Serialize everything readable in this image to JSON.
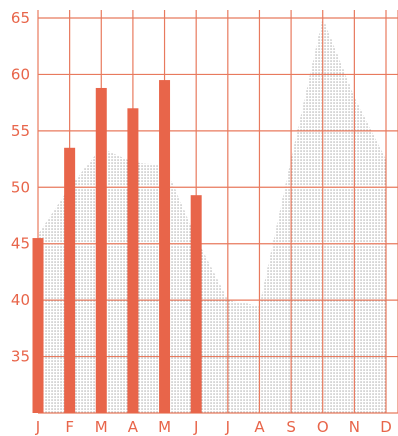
{
  "chart_data": {
    "type": "bar",
    "title": "",
    "xlabel": "",
    "ylabel": "",
    "categories": [
      "J",
      "F",
      "M",
      "A",
      "M",
      "J",
      "J",
      "A",
      "S",
      "O",
      "N",
      "D"
    ],
    "ylim": [
      30,
      65
    ],
    "yticks": [
      35,
      40,
      45,
      50,
      55,
      60,
      65
    ],
    "grid": true,
    "legend": "none",
    "series": [
      {
        "type": "bar",
        "values": [
          45.5,
          53.5,
          58.8,
          57.0,
          59.5,
          49.3,
          null,
          null,
          null,
          null,
          null,
          null
        ]
      },
      {
        "type": "area",
        "values": [
          45.8,
          50.0,
          53.5,
          52.2,
          52.0,
          45.5,
          40.0,
          39.5,
          52.5,
          65.0,
          58.0,
          52.5
        ]
      }
    ]
  },
  "colors": {
    "accent": "#e8654a",
    "grid": "#e87a5e",
    "area_dots": "#8a8a8a",
    "background": "#ffffff"
  }
}
